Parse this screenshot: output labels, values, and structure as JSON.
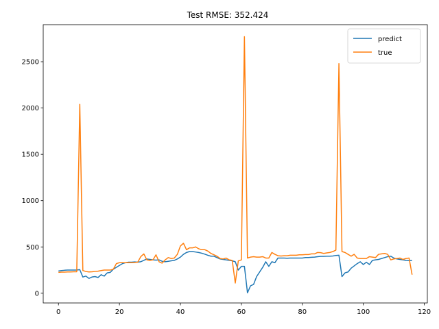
{
  "chart_data": {
    "type": "line",
    "title": "Test RMSE: 352.424",
    "xlabel": "",
    "ylabel": "",
    "xlim": [
      -5,
      121
    ],
    "ylim": [
      -105,
      2900
    ],
    "xticks": [
      0,
      20,
      40,
      60,
      80,
      100,
      120
    ],
    "yticks": [
      0,
      500,
      1000,
      1500,
      2000,
      2500
    ],
    "grid": false,
    "legend_position": "top-right",
    "series": [
      {
        "name": "predict",
        "color": "#1f77b4",
        "x": [
          0,
          1,
          2,
          3,
          4,
          5,
          6,
          7,
          8,
          9,
          10,
          11,
          12,
          13,
          14,
          15,
          16,
          17,
          18,
          19,
          20,
          21,
          22,
          23,
          24,
          25,
          26,
          27,
          28,
          29,
          30,
          31,
          32,
          33,
          34,
          35,
          36,
          37,
          38,
          39,
          40,
          41,
          42,
          43,
          44,
          45,
          46,
          47,
          48,
          49,
          50,
          51,
          52,
          53,
          54,
          55,
          56,
          57,
          58,
          59,
          60,
          61,
          62,
          63,
          64,
          65,
          66,
          67,
          68,
          69,
          70,
          71,
          72,
          73,
          74,
          75,
          76,
          77,
          78,
          79,
          80,
          81,
          82,
          83,
          84,
          85,
          86,
          87,
          88,
          89,
          90,
          91,
          92,
          93,
          94,
          95,
          96,
          97,
          98,
          99,
          100,
          101,
          102,
          103,
          104,
          105,
          106,
          107,
          108,
          109,
          110,
          111,
          112,
          113,
          114,
          115,
          116
        ],
        "y": [
          240,
          245,
          248,
          250,
          250,
          250,
          250,
          255,
          175,
          185,
          160,
          175,
          180,
          170,
          200,
          185,
          220,
          225,
          260,
          280,
          300,
          320,
          330,
          335,
          335,
          338,
          335,
          340,
          355,
          370,
          365,
          360,
          358,
          360,
          345,
          340,
          345,
          350,
          355,
          370,
          390,
          420,
          440,
          450,
          450,
          445,
          440,
          432,
          422,
          410,
          400,
          400,
          385,
          370,
          365,
          360,
          355,
          350,
          340,
          250,
          290,
          290,
          5,
          80,
          95,
          180,
          230,
          280,
          340,
          290,
          340,
          330,
          380,
          380,
          380,
          378,
          380,
          380,
          380,
          380,
          380,
          385,
          385,
          388,
          390,
          395,
          398,
          398,
          400,
          400,
          402,
          408,
          410,
          180,
          220,
          230,
          270,
          295,
          320,
          340,
          310,
          335,
          310,
          355,
          360,
          365,
          375,
          385,
          395,
          400,
          380,
          370,
          365,
          360,
          355,
          352,
          355
        ]
      },
      {
        "name": "true",
        "color": "#ff7f0e",
        "x": [
          0,
          1,
          2,
          3,
          4,
          5,
          6,
          7,
          8,
          9,
          10,
          11,
          12,
          13,
          14,
          15,
          16,
          17,
          18,
          19,
          20,
          21,
          22,
          23,
          24,
          25,
          26,
          27,
          28,
          29,
          30,
          31,
          32,
          33,
          34,
          35,
          36,
          37,
          38,
          39,
          40,
          41,
          42,
          43,
          44,
          45,
          46,
          47,
          48,
          49,
          50,
          51,
          52,
          53,
          54,
          55,
          56,
          57,
          58,
          59,
          60,
          61,
          62,
          63,
          64,
          65,
          66,
          67,
          68,
          69,
          70,
          71,
          72,
          73,
          74,
          75,
          76,
          77,
          78,
          79,
          80,
          81,
          82,
          83,
          84,
          85,
          86,
          87,
          88,
          89,
          90,
          91,
          92,
          93,
          94,
          95,
          96,
          97,
          98,
          99,
          100,
          101,
          102,
          103,
          104,
          105,
          106,
          107,
          108,
          109,
          110,
          111,
          112,
          113,
          114,
          115,
          116
        ],
        "y": [
          225,
          228,
          228,
          230,
          230,
          232,
          232,
          2040,
          245,
          235,
          230,
          232,
          235,
          238,
          245,
          250,
          250,
          250,
          260,
          320,
          330,
          330,
          330,
          330,
          330,
          332,
          335,
          395,
          425,
          360,
          355,
          360,
          415,
          340,
          325,
          360,
          385,
          375,
          380,
          420,
          510,
          540,
          470,
          490,
          490,
          500,
          480,
          470,
          470,
          455,
          430,
          415,
          400,
          375,
          370,
          380,
          360,
          355,
          110,
          350,
          360,
          2770,
          380,
          390,
          395,
          390,
          390,
          395,
          380,
          380,
          440,
          420,
          405,
          402,
          405,
          405,
          410,
          410,
          410,
          415,
          415,
          418,
          418,
          425,
          425,
          440,
          438,
          430,
          435,
          440,
          450,
          465,
          2480,
          450,
          440,
          420,
          400,
          420,
          380,
          375,
          375,
          375,
          395,
          390,
          385,
          420,
          425,
          430,
          420,
          360,
          370,
          375,
          380,
          365,
          375,
          380,
          200
        ]
      }
    ]
  }
}
